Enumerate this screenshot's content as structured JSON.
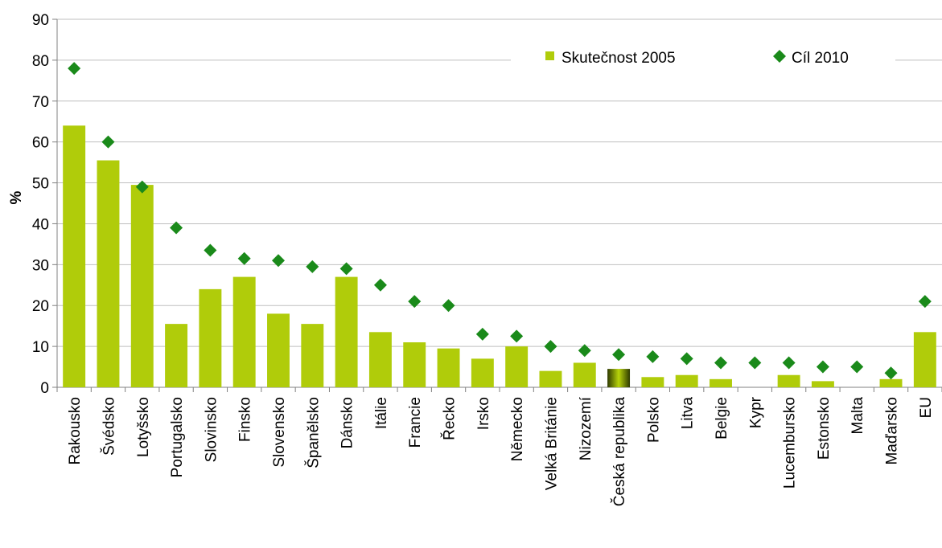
{
  "chart_data": {
    "type": "bar",
    "ylabel": "%",
    "ylim": [
      0,
      90
    ],
    "yticks": [
      0,
      10,
      20,
      30,
      40,
      50,
      60,
      70,
      80,
      90
    ],
    "grid": true,
    "legend_position": "top-right",
    "categories": [
      "Rakousko",
      "Švédsko",
      "Lotyšsko",
      "Portugalsko",
      "Slovinsko",
      "Finsko",
      "Slovensko",
      "Španělsko",
      "Dánsko",
      "Itálie",
      "Francie",
      "Řecko",
      "Irsko",
      "Německo",
      "Velká Británie",
      "Nizozemí",
      "Česká republika",
      "Polsko",
      "Litva",
      "Belgie",
      "Kypr",
      "Lucembursko",
      "Estonsko",
      "Malta",
      "Maďarsko",
      "EU"
    ],
    "highlight_category": "Česká republika",
    "series": [
      {
        "name": "Skutečnost 2005",
        "type": "bar",
        "color": "#b0cc0a",
        "values": [
          64,
          55.5,
          49.5,
          15.5,
          24,
          27,
          18,
          15.5,
          27,
          13.5,
          11,
          9.5,
          7,
          10,
          4,
          6,
          4.5,
          2.5,
          3,
          2,
          0,
          3,
          1.5,
          0,
          2,
          13.5
        ]
      },
      {
        "name": "Cíl 2010",
        "type": "scatter",
        "marker": "diamond",
        "color": "#1a8a1a",
        "values": [
          78,
          60,
          49,
          39,
          33.5,
          31.5,
          31,
          29.5,
          29,
          25,
          21,
          20,
          13,
          12.5,
          10,
          9,
          8,
          7.5,
          7,
          6,
          6,
          6,
          5,
          5,
          3.5,
          21
        ]
      }
    ]
  }
}
